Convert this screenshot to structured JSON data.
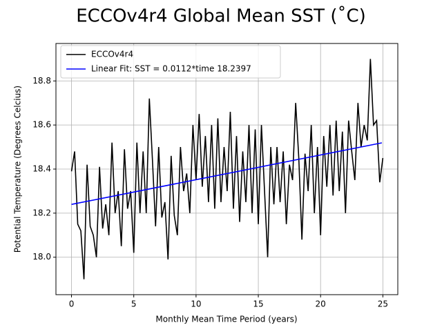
{
  "chart_data": {
    "type": "line",
    "title": "ECCOv4r4 Global Mean SST (˚C)",
    "xlabel": "Monthly Mean Time Period (years)",
    "ylabel": "Potential Temperature (Degrees Celcius)",
    "xlim": [
      -1.25,
      26.2
    ],
    "ylim": [
      17.83,
      18.97
    ],
    "xticks": [
      0,
      5,
      10,
      15,
      20,
      25
    ],
    "yticks": [
      {
        "value": 18,
        "label": "18.0"
      },
      18.2,
      18.4,
      18.6,
      18.8
    ],
    "grid": true,
    "legend": "upper left",
    "series": [
      {
        "name": "ECCOv4r4",
        "color": "#000000",
        "x": [
          0,
          0.25,
          0.5,
          0.75,
          1,
          1.25,
          1.5,
          1.75,
          2,
          2.25,
          2.5,
          2.75,
          3,
          3.25,
          3.5,
          3.75,
          4,
          4.25,
          4.5,
          4.75,
          5,
          5.25,
          5.5,
          5.75,
          6,
          6.25,
          6.5,
          6.75,
          7,
          7.25,
          7.5,
          7.75,
          8,
          8.25,
          8.5,
          8.75,
          9,
          9.25,
          9.5,
          9.75,
          10,
          10.25,
          10.5,
          10.75,
          11,
          11.25,
          11.5,
          11.75,
          12,
          12.25,
          12.5,
          12.75,
          13,
          13.25,
          13.5,
          13.75,
          14,
          14.25,
          14.5,
          14.75,
          15,
          15.25,
          15.5,
          15.75,
          16,
          16.25,
          16.5,
          16.75,
          17,
          17.25,
          17.5,
          17.75,
          18,
          18.25,
          18.5,
          18.75,
          19,
          19.25,
          19.5,
          19.75,
          20,
          20.25,
          20.5,
          20.75,
          21,
          21.25,
          21.5,
          21.75,
          22,
          22.25,
          22.5,
          22.75,
          23,
          23.25,
          23.5,
          23.75,
          24,
          24.25,
          24.5,
          24.75,
          25
        ],
        "values": [
          18.39,
          18.48,
          18.15,
          18.12,
          17.9,
          18.42,
          18.14,
          18.1,
          18.0,
          18.41,
          18.13,
          18.24,
          18.1,
          18.52,
          18.2,
          18.3,
          18.05,
          18.49,
          18.22,
          18.3,
          18.02,
          18.52,
          18.2,
          18.48,
          18.2,
          18.72,
          18.44,
          18.14,
          18.5,
          18.18,
          18.25,
          17.99,
          18.46,
          18.19,
          18.1,
          18.5,
          18.3,
          18.38,
          18.2,
          18.6,
          18.35,
          18.65,
          18.32,
          18.55,
          18.25,
          18.6,
          18.22,
          18.63,
          18.25,
          18.5,
          18.3,
          18.66,
          18.22,
          18.55,
          18.16,
          18.48,
          18.25,
          18.6,
          18.2,
          18.58,
          18.15,
          18.6,
          18.3,
          18.0,
          18.5,
          18.24,
          18.5,
          18.25,
          18.48,
          18.15,
          18.42,
          18.35,
          18.7,
          18.45,
          18.08,
          18.47,
          18.3,
          18.6,
          18.2,
          18.5,
          18.1,
          18.55,
          18.32,
          18.6,
          18.28,
          18.62,
          18.3,
          18.57,
          18.2,
          18.62,
          18.48,
          18.35,
          18.7,
          18.5,
          18.6,
          18.53,
          18.9,
          18.6,
          18.62,
          18.34,
          18.45
        ]
      },
      {
        "name": "Linear Fit: SST = 0.0112*time 18.2397",
        "color": "#0000ff",
        "x": [
          0,
          24.92
        ],
        "values": [
          18.2397,
          18.519
        ]
      }
    ]
  }
}
